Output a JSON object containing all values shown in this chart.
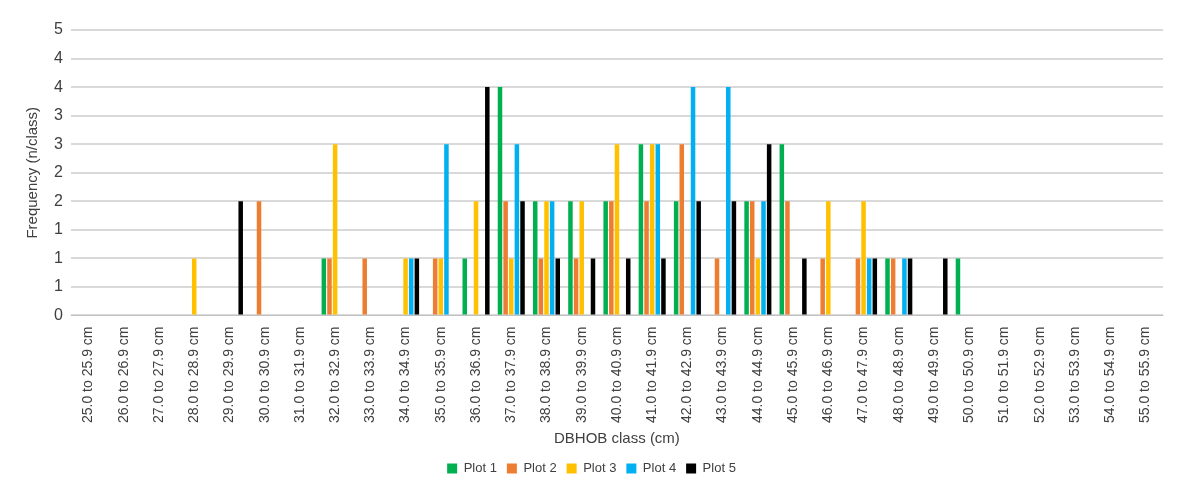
{
  "chart_data": {
    "type": "bar",
    "xlabel": "DBHOB class (cm)",
    "ylabel": "Frequency (n/class)",
    "categories": [
      "25.0 to 25.9 cm",
      "26.0 to 26.9 cm",
      "27.0 to 27.9 cm",
      "28.0 to 28.9 cm",
      "29.0 to 29.9 cm",
      "30.0 to 30.9 cm",
      "31.0 to 31.9 cm",
      "32.0 to 32.9 cm",
      "33.0 to 33.9 cm",
      "34.0 to 34.9 cm",
      "35.0 to 35.9 cm",
      "36.0 to 36.9 cm",
      "37.0 to 37.9 cm",
      "38.0 to 38.9 cm",
      "39.0 to 39.9 cm",
      "40.0 to 40.9 cm",
      "41.0 to 41.9 cm",
      "42.0 to 42.9 cm",
      "43.0 to 43.9 cm",
      "44.0 to 44.9 cm",
      "45.0 to 45.9 cm",
      "46.0 to 46.9 cm",
      "47.0 to 47.9 cm",
      "48.0 to 48.9 cm",
      "49.0 to 49.9 cm",
      "50.0 to 50.9 cm",
      "51.0 to 51.9 cm",
      "52.0 to 52.9 cm",
      "53.0 to 53.9 cm",
      "54.0 to 54.9 cm",
      "55.0 to 55.9 cm"
    ],
    "series": [
      {
        "name": "Plot 1",
        "color": "#00b050",
        "values": [
          0,
          0,
          0,
          0,
          0,
          0,
          0,
          1,
          0,
          0,
          0,
          1,
          4,
          2,
          2,
          2,
          3,
          2,
          0,
          2,
          3,
          0,
          0,
          1,
          0,
          1,
          0,
          0,
          0,
          0,
          0
        ]
      },
      {
        "name": "Plot 2",
        "color": "#ed7d31",
        "values": [
          0,
          0,
          0,
          0,
          0,
          2,
          0,
          1,
          1,
          0,
          1,
          0,
          2,
          1,
          1,
          2,
          2,
          3,
          1,
          2,
          2,
          1,
          1,
          1,
          0,
          0,
          0,
          0,
          0,
          0,
          0
        ]
      },
      {
        "name": "Plot 3",
        "color": "#ffc000",
        "values": [
          0,
          0,
          0,
          1,
          0,
          0,
          0,
          3,
          0,
          1,
          1,
          2,
          1,
          2,
          2,
          3,
          3,
          0,
          0,
          1,
          0,
          2,
          2,
          0,
          0,
          0,
          0,
          0,
          0,
          0,
          0
        ]
      },
      {
        "name": "Plot 4",
        "color": "#00b0f0",
        "values": [
          0,
          0,
          0,
          0,
          0,
          0,
          0,
          0,
          0,
          1,
          3,
          0,
          3,
          2,
          0,
          0,
          3,
          4,
          4,
          2,
          0,
          0,
          1,
          1,
          0,
          0,
          0,
          0,
          0,
          0,
          0
        ]
      },
      {
        "name": "Plot 5",
        "color": "#000000",
        "values": [
          0,
          0,
          0,
          0,
          2,
          0,
          0,
          0,
          0,
          1,
          0,
          4,
          2,
          1,
          1,
          1,
          1,
          2,
          2,
          3,
          1,
          0,
          1,
          1,
          1,
          0,
          0,
          0,
          0,
          0,
          0
        ]
      }
    ],
    "ylim": [
      0,
      5
    ],
    "yticks": [
      0,
      {
        "value": 0.5,
        "label": "1"
      },
      1,
      {
        "value": 1.5,
        "label": "1"
      },
      {
        "value": 2,
        "label": "2"
      },
      {
        "value": 2.5,
        "label": "2"
      },
      3,
      {
        "value": 3.5,
        "label": "3"
      },
      4,
      {
        "value": 4.5,
        "label": "4"
      },
      5
    ],
    "grid": "y",
    "legend": "bottom"
  }
}
